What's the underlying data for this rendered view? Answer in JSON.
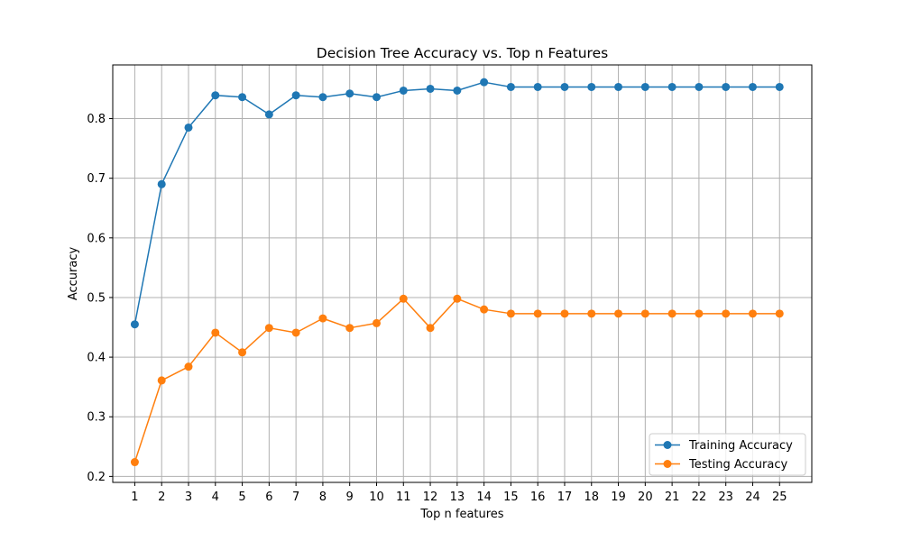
{
  "chart_data": {
    "type": "line",
    "title": "Decision Tree Accuracy vs. Top n Features",
    "xlabel": "Top n features",
    "ylabel": "Accuracy",
    "x": [
      1,
      2,
      3,
      4,
      5,
      6,
      7,
      8,
      9,
      10,
      11,
      12,
      13,
      14,
      15,
      16,
      17,
      18,
      19,
      20,
      21,
      22,
      23,
      24,
      25
    ],
    "xticks": [
      "1",
      "2",
      "3",
      "4",
      "5",
      "6",
      "7",
      "8",
      "9",
      "10",
      "11",
      "12",
      "13",
      "14",
      "15",
      "16",
      "17",
      "18",
      "19",
      "20",
      "21",
      "22",
      "23",
      "24",
      "25"
    ],
    "yticks": [
      "0.2",
      "0.3",
      "0.4",
      "0.5",
      "0.6",
      "0.7",
      "0.8"
    ],
    "xlim": [
      0.18,
      26.2
    ],
    "ylim": [
      0.19,
      0.89
    ],
    "grid": true,
    "legend_position": "lower-right",
    "series": [
      {
        "name": "Training Accuracy",
        "color": "#1f77b4",
        "marker": "circle",
        "values": [
          0.455,
          0.69,
          0.785,
          0.839,
          0.836,
          0.807,
          0.839,
          0.836,
          0.842,
          0.836,
          0.847,
          0.85,
          0.847,
          0.861,
          0.853,
          0.853,
          0.853,
          0.853,
          0.853,
          0.853,
          0.853,
          0.853,
          0.853,
          0.853,
          0.853
        ]
      },
      {
        "name": "Testing Accuracy",
        "color": "#ff7f0e",
        "marker": "circle",
        "values": [
          0.224,
          0.361,
          0.384,
          0.441,
          0.408,
          0.449,
          0.441,
          0.465,
          0.449,
          0.457,
          0.498,
          0.449,
          0.498,
          0.48,
          0.473,
          0.473,
          0.473,
          0.473,
          0.473,
          0.473,
          0.473,
          0.473,
          0.473,
          0.473,
          0.473
        ]
      }
    ]
  }
}
